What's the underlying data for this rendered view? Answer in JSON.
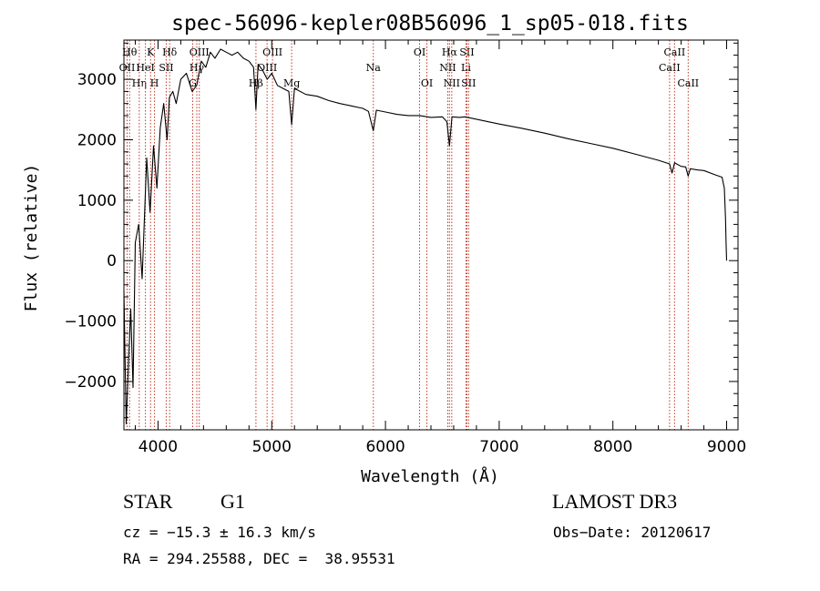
{
  "chart_data": {
    "type": "line",
    "title": "spec-56096-kepler08B56096_1_sp05-018.fits",
    "xlabel": "Wavelength (Å)",
    "ylabel": "Flux (relative)",
    "xlim": [
      3700,
      9100
    ],
    "ylim": [
      -2800,
      3650
    ],
    "xticks": [
      4000,
      5000,
      6000,
      7000,
      8000,
      9000
    ],
    "yticks": [
      -2000,
      -1000,
      0,
      1000,
      2000,
      3000
    ],
    "series": [
      {
        "name": "flux",
        "x": [
          3700,
          3720,
          3740,
          3760,
          3780,
          3800,
          3830,
          3860,
          3900,
          3930,
          3960,
          3990,
          4020,
          4050,
          4080,
          4100,
          4130,
          4160,
          4200,
          4250,
          4300,
          4340,
          4380,
          4420,
          4460,
          4500,
          4550,
          4600,
          4650,
          4700,
          4750,
          4800,
          4840,
          4861,
          4880,
          4920,
          4960,
          5000,
          5050,
          5100,
          5150,
          5175,
          5200,
          5300,
          5400,
          5500,
          5600,
          5700,
          5800,
          5850,
          5893,
          5920,
          6000,
          6100,
          6200,
          6300,
          6400,
          6500,
          6540,
          6563,
          6585,
          6650,
          6700,
          6800,
          7000,
          7200,
          7400,
          7600,
          7800,
          8000,
          8200,
          8400,
          8498,
          8520,
          8542,
          8560,
          8600,
          8640,
          8662,
          8680,
          8750,
          8800,
          8900,
          8960,
          8980,
          8990,
          8995,
          9000
        ],
        "y": [
          -500,
          -2700,
          -1700,
          -800,
          -2100,
          300,
          600,
          -300,
          1700,
          800,
          1900,
          1200,
          2200,
          2600,
          2000,
          2700,
          2800,
          2600,
          3000,
          3100,
          2800,
          2900,
          3300,
          3200,
          3450,
          3350,
          3500,
          3450,
          3400,
          3450,
          3350,
          3300,
          3200,
          2500,
          3250,
          3150,
          3000,
          3100,
          2900,
          2850,
          2800,
          2250,
          2850,
          2750,
          2720,
          2650,
          2600,
          2560,
          2520,
          2470,
          2150,
          2490,
          2460,
          2420,
          2400,
          2400,
          2370,
          2380,
          2300,
          1900,
          2380,
          2370,
          2380,
          2340,
          2260,
          2190,
          2110,
          2020,
          1940,
          1860,
          1760,
          1660,
          1600,
          1450,
          1620,
          1600,
          1560,
          1550,
          1400,
          1520,
          1500,
          1490,
          1420,
          1380,
          1200,
          700,
          300,
          0
        ]
      }
    ],
    "lines": [
      {
        "label": "Hθ",
        "x": 3750,
        "row": 1
      },
      {
        "label": "OII",
        "x": 3728,
        "row": 2
      },
      {
        "label": "Hη",
        "x": 3835,
        "row": 3
      },
      {
        "label": "HeI",
        "x": 3889,
        "row": 2
      },
      {
        "label": "K",
        "x": 3934,
        "row": 1
      },
      {
        "label": "H",
        "x": 3969,
        "row": 3
      },
      {
        "label": "SII",
        "x": 4072,
        "row": 2
      },
      {
        "label": "Hδ",
        "x": 4102,
        "row": 1
      },
      {
        "label": "G",
        "x": 4305,
        "row": 3
      },
      {
        "label": "Hγ",
        "x": 4341,
        "row": 2
      },
      {
        "label": "OIII",
        "x": 4363,
        "row": 1
      },
      {
        "label": "Hβ",
        "x": 4861,
        "row": 3
      },
      {
        "label": "OIII",
        "x": 4959,
        "row": 2
      },
      {
        "label": "OIII",
        "x": 5007,
        "row": 1
      },
      {
        "label": "Mg",
        "x": 5175,
        "row": 3
      },
      {
        "label": "Na",
        "x": 5893,
        "row": 2
      },
      {
        "label": "OI",
        "x": 6300,
        "row": 1
      },
      {
        "label": "OI",
        "x": 6364,
        "row": 3
      },
      {
        "label": "NII",
        "x": 6548,
        "row": 2
      },
      {
        "label": "Hα",
        "x": 6563,
        "row": 1
      },
      {
        "label": "NII",
        "x": 6583,
        "row": 3
      },
      {
        "label": "SII",
        "x": 6716,
        "row": 1
      },
      {
        "label": "Li",
        "x": 6708,
        "row": 2
      },
      {
        "label": "SII",
        "x": 6731,
        "row": 3
      },
      {
        "label": "CaII",
        "x": 8498,
        "row": 2
      },
      {
        "label": "CaII",
        "x": 8542,
        "row": 1
      },
      {
        "label": "CaII",
        "x": 8662,
        "row": 3
      }
    ]
  },
  "info": {
    "object_class": "STAR",
    "subclass": "G1",
    "survey": "LAMOST DR3",
    "cz": "cz = −15.3 ± 16.3 km/s",
    "obs_date": "Obs−Date: 20120617",
    "coords": "RA = 294.25588, DEC =  38.95531"
  }
}
